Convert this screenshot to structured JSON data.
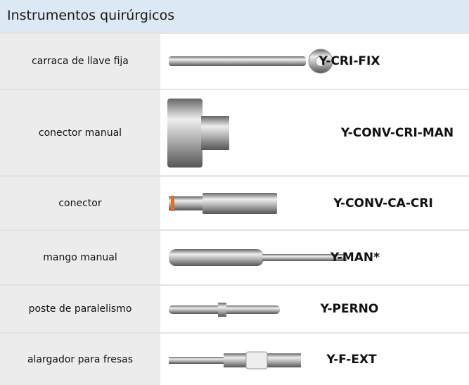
{
  "header": {
    "title": "Instrumentos quirúrgicos"
  },
  "table": {
    "rows": [
      [
        "carraca de llave fija",
        "Y-CRI-FIX"
      ],
      [
        "conector manual",
        "Y-CONV-CRI-MAN"
      ],
      [
        "conector",
        "Y-CONV-CA-CRI"
      ],
      [
        "mango manual",
        "Y-MAN*"
      ],
      [
        "poste de paralelismo",
        "Y-PERNO"
      ],
      [
        "alargador para fresas",
        "Y-F-EXT"
      ]
    ]
  }
}
